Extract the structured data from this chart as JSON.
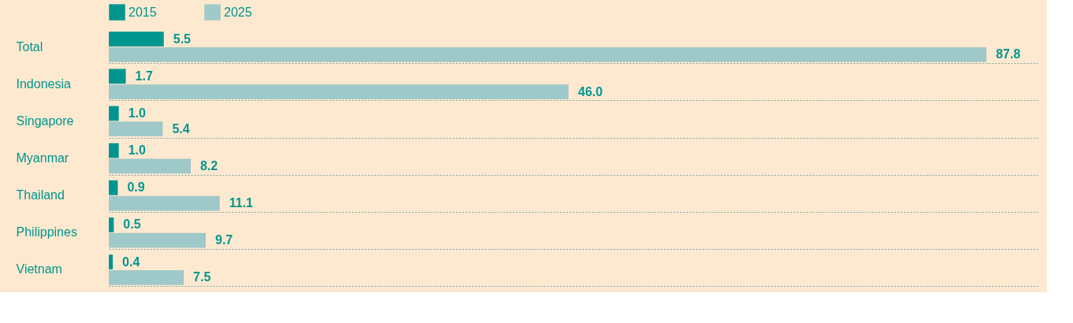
{
  "chart_data": {
    "type": "bar",
    "orientation": "horizontal",
    "categories": [
      "Total",
      "Indonesia",
      "Singapore",
      "Myanmar",
      "Thailand",
      "Philippines",
      "Vietnam"
    ],
    "series": [
      {
        "name": "2015",
        "color": "#00968f",
        "values": [
          5.5,
          1.7,
          1.0,
          1.0,
          0.9,
          0.5,
          0.4
        ],
        "value_labels": [
          "5.5",
          "1.7",
          "1.0",
          "1.0",
          "0.9",
          "0.5",
          "0.4"
        ]
      },
      {
        "name": "2025",
        "color": "#9fc8c8",
        "values": [
          87.8,
          46.0,
          5.4,
          8.2,
          11.1,
          9.7,
          7.5
        ],
        "value_labels": [
          "87.8",
          "46.0",
          "5.4",
          "8.2",
          "11.1",
          "9.7",
          "7.5"
        ]
      }
    ],
    "legend": "top left",
    "grid": "y"
  }
}
